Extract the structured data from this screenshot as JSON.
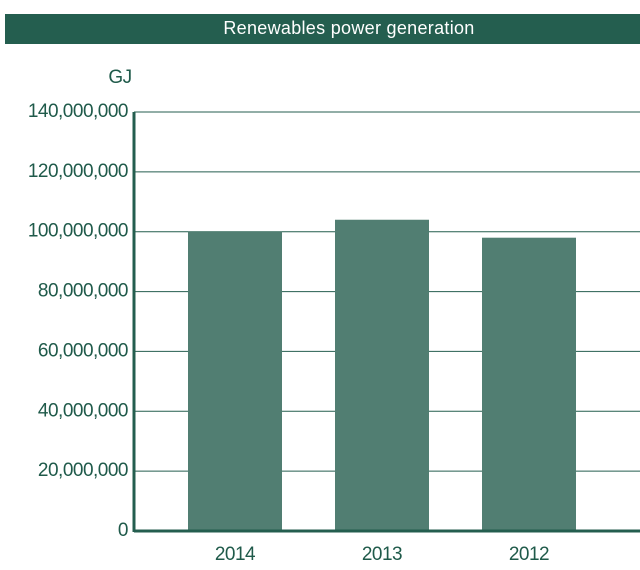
{
  "chart_data": {
    "type": "bar",
    "title": "Renewables power generation",
    "y_label": "GJ",
    "categories": [
      "2014",
      "2013",
      "2012"
    ],
    "values": [
      100000000,
      104000000,
      98000000
    ],
    "color": "#517e72",
    "ylim": [
      0,
      140000000
    ],
    "yticks": [
      0,
      {
        "value": 20000000,
        "label": "20,000,000"
      },
      {
        "value": 40000000,
        "label": "40,000,000"
      },
      {
        "value": 60000000,
        "label": "60,000,000"
      },
      {
        "value": 80000000,
        "label": "80,000,000"
      },
      {
        "value": 100000000,
        "label": "100,000,000"
      },
      {
        "value": 120000000,
        "label": "120,000,000"
      },
      {
        "value": 140000000,
        "label": "140,000,000"
      }
    ],
    "grid": true
  }
}
